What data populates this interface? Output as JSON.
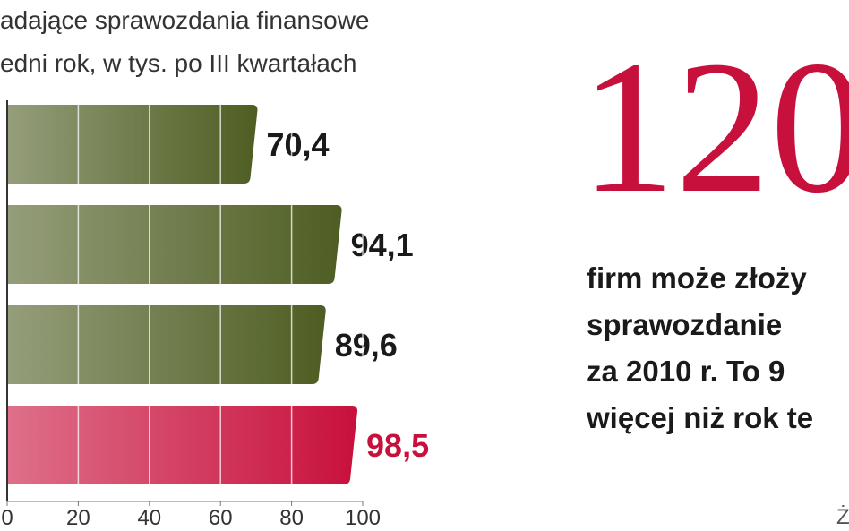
{
  "chart_data": {
    "type": "hbar",
    "title_lines": [
      "adające sprawozdania finansowe",
      "edni rok, w tys. po III kwartałach"
    ],
    "categories": [
      null,
      null,
      null,
      null
    ],
    "values": [
      70.4,
      94.1,
      89.6,
      98.5
    ],
    "value_labels": [
      "70,4",
      "94,1",
      "89,6",
      "98,5"
    ],
    "colors": [
      "#4e5d22",
      "#4e5d22",
      "#4e5d22",
      "#c8103c"
    ],
    "label_colors": [
      "#1a1a1a",
      "#1a1a1a",
      "#1a1a1a",
      "#c8103c"
    ],
    "xlim": [
      0,
      100
    ],
    "xticks": [
      0,
      20,
      40,
      60,
      80,
      100
    ],
    "grid": true
  },
  "annotations": {
    "big_number": "120",
    "big_number_color": "#c8103c",
    "text_lines": [
      "firm może złoży",
      "sprawozdanie",
      "za 2010 r. To 9",
      "więcej niż rok te"
    ],
    "source": "Ż"
  }
}
